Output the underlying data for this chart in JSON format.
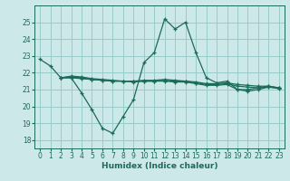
{
  "title": "",
  "xlabel": "Humidex (Indice chaleur)",
  "bg_color": "#cce8e8",
  "grid_color": "#99cccc",
  "line_color": "#1a6b5a",
  "xlim": [
    -0.5,
    23.5
  ],
  "ylim": [
    17.5,
    26.0
  ],
  "yticks": [
    18,
    19,
    20,
    21,
    22,
    23,
    24,
    25
  ],
  "xticks": [
    0,
    1,
    2,
    3,
    4,
    5,
    6,
    7,
    8,
    9,
    10,
    11,
    12,
    13,
    14,
    15,
    16,
    17,
    18,
    19,
    20,
    21,
    22,
    23
  ],
  "lines": [
    {
      "x": [
        0,
        1,
        2,
        3,
        4,
        5,
        6,
        7,
        8,
        9,
        10,
        11,
        12,
        13,
        14,
        15,
        16,
        17,
        18,
        19,
        20,
        21,
        22,
        23
      ],
      "y": [
        22.8,
        22.4,
        21.7,
        21.7,
        20.8,
        19.8,
        18.7,
        18.4,
        19.4,
        20.4,
        22.6,
        23.2,
        25.2,
        24.6,
        25.0,
        23.2,
        21.7,
        21.4,
        21.5,
        21.0,
        21.0,
        21.1,
        21.2,
        21.1
      ]
    },
    {
      "x": [
        2,
        3,
        4,
        5,
        6,
        7,
        8,
        9,
        10,
        11,
        12,
        13,
        14,
        15,
        16,
        17,
        18,
        19,
        20,
        21,
        22,
        23
      ],
      "y": [
        21.7,
        21.8,
        21.75,
        21.65,
        21.6,
        21.55,
        21.5,
        21.5,
        21.55,
        21.55,
        21.6,
        21.55,
        21.5,
        21.45,
        21.35,
        21.35,
        21.4,
        21.3,
        21.25,
        21.2,
        21.2,
        21.1
      ]
    },
    {
      "x": [
        2,
        3,
        4,
        5,
        6,
        7,
        8,
        9,
        10,
        11,
        12,
        13,
        14,
        15,
        16,
        17,
        18,
        19,
        20,
        21,
        22,
        23
      ],
      "y": [
        21.7,
        21.75,
        21.7,
        21.6,
        21.55,
        21.5,
        21.5,
        21.5,
        21.5,
        21.5,
        21.55,
        21.5,
        21.5,
        21.4,
        21.3,
        21.3,
        21.35,
        21.2,
        21.15,
        21.1,
        21.15,
        21.1
      ]
    },
    {
      "x": [
        2,
        3,
        4,
        5,
        6,
        7,
        8,
        9,
        10,
        11,
        12,
        13,
        14,
        15,
        16,
        17,
        18,
        19,
        20,
        21,
        22,
        23
      ],
      "y": [
        21.7,
        21.7,
        21.65,
        21.6,
        21.55,
        21.5,
        21.5,
        21.45,
        21.5,
        21.5,
        21.5,
        21.45,
        21.45,
        21.35,
        21.25,
        21.25,
        21.3,
        21.0,
        20.9,
        21.0,
        21.15,
        21.05
      ]
    }
  ]
}
